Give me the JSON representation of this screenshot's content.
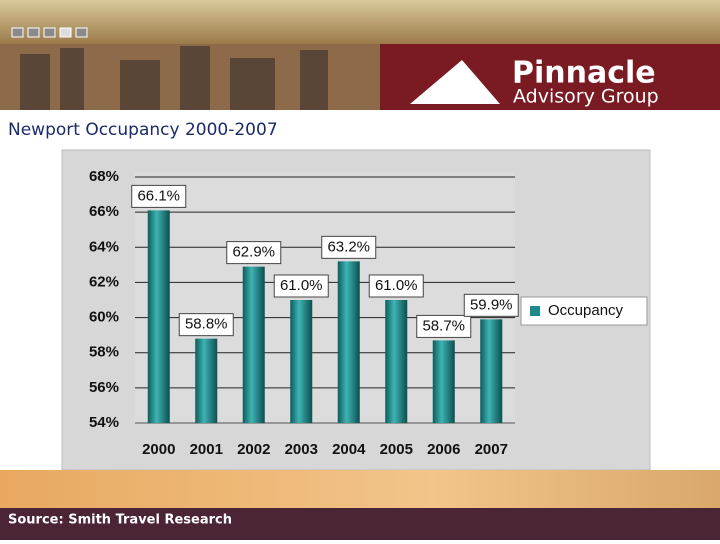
{
  "header": {
    "logo_line1": "Pinnacle",
    "logo_line2": "Advisory Group"
  },
  "chart_data": {
    "type": "bar",
    "title": "Newport Occupancy 2000-2007",
    "categories": [
      "2000",
      "2001",
      "2002",
      "2003",
      "2004",
      "2005",
      "2006",
      "2007"
    ],
    "series": [
      {
        "name": "Occupancy",
        "color": "#1f8a8a",
        "values": [
          66.1,
          58.8,
          62.9,
          61.0,
          63.2,
          61.0,
          58.7,
          59.9
        ],
        "value_labels": [
          "66.1%",
          "58.8%",
          "62.9%",
          "61.0%",
          "63.2%",
          "61.0%",
          "58.7%",
          "59.9%"
        ]
      }
    ],
    "ylim": [
      54,
      68
    ],
    "yticks": [
      {
        "value": 54,
        "label": "54%"
      },
      {
        "value": 56,
        "label": "56%"
      },
      {
        "value": 58,
        "label": "58%"
      },
      {
        "value": 60,
        "label": "60%"
      },
      {
        "value": 62,
        "label": "62%"
      },
      {
        "value": 64,
        "label": "64%"
      },
      {
        "value": 66,
        "label": "66%"
      },
      {
        "value": 68,
        "label": "68%"
      }
    ],
    "grid": true,
    "legend": "right"
  },
  "footer": {
    "source": "Source: Smith Travel Research"
  }
}
